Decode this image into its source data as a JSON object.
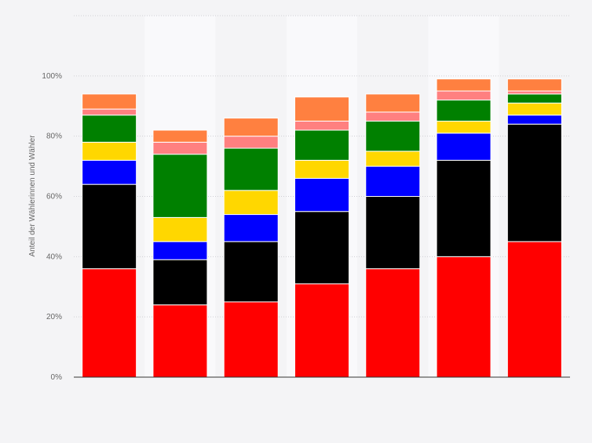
{
  "chart_data": {
    "type": "bar",
    "stacked": true,
    "ylabel": "Anteil der Wählerinnen und Wähler",
    "ylim": [
      0,
      120
    ],
    "yticks": [
      0,
      20,
      40,
      60,
      80,
      100
    ],
    "ytick_labels": [
      "0%",
      "20%",
      "40%",
      "60%",
      "80%",
      "100%"
    ],
    "grid": true,
    "categories": [
      "",
      "",
      "",
      "",
      "",
      "",
      ""
    ],
    "series": [
      {
        "color": "#ff0000",
        "values": [
          36,
          24,
          25,
          31,
          36,
          40,
          45
        ]
      },
      {
        "color": "#000000",
        "values": [
          28,
          15,
          20,
          24,
          24,
          32,
          39
        ]
      },
      {
        "color": "#0000ff",
        "values": [
          8,
          6,
          9,
          11,
          10,
          9,
          3
        ]
      },
      {
        "color": "#ffd700",
        "values": [
          6,
          8,
          8,
          6,
          5,
          4,
          4
        ]
      },
      {
        "color": "#008000",
        "values": [
          9,
          21,
          14,
          10,
          10,
          7,
          3
        ]
      },
      {
        "color": "#ff8080",
        "values": [
          2,
          4,
          4,
          3,
          3,
          3,
          1
        ]
      },
      {
        "color": "#ff8040",
        "values": [
          5,
          4,
          6,
          8,
          6,
          4,
          4
        ]
      }
    ]
  }
}
